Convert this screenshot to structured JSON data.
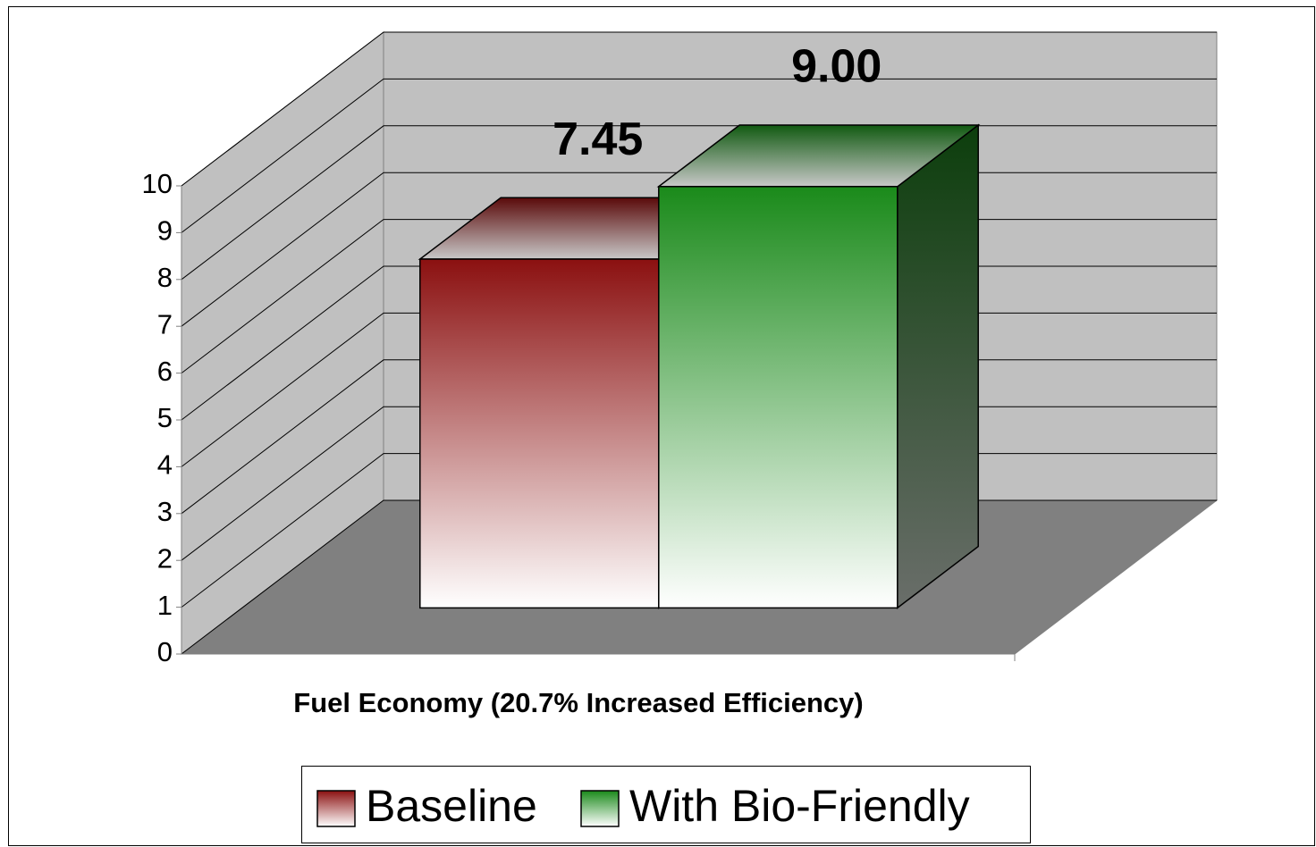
{
  "chart_data": {
    "type": "bar3d",
    "categories": [
      "Fuel Economy (20.7% Increased Efficiency)"
    ],
    "series": [
      {
        "name": "Baseline",
        "color": "#8b1010",
        "values": [
          7.45
        ],
        "value_labels": [
          "7.45"
        ]
      },
      {
        "name": "With Bio-Friendly",
        "color": "#1a8a1a",
        "values": [
          9.0
        ],
        "value_labels": [
          "9.00"
        ]
      }
    ],
    "ylim": [
      0,
      10
    ],
    "yticks": [
      0,
      1,
      2,
      3,
      4,
      5,
      6,
      7,
      8,
      9,
      10
    ],
    "grid": true
  }
}
